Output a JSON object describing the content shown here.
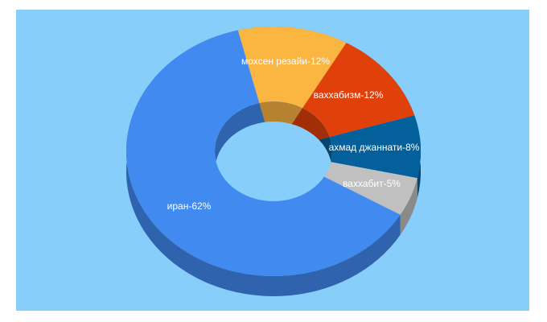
{
  "chart_data": {
    "type": "donut3d",
    "value_labels": [
      "мохсен резайи-12%",
      "ваххабизм-12%",
      "ахмад джаннати-8%",
      "ваххабит-5%",
      "иран-62%"
    ],
    "values": [
      12,
      12,
      8,
      5,
      62
    ],
    "colors": [
      "#fbb641",
      "#e0400a",
      "#04609a",
      "#c0c0c0",
      "#418af0"
    ]
  }
}
